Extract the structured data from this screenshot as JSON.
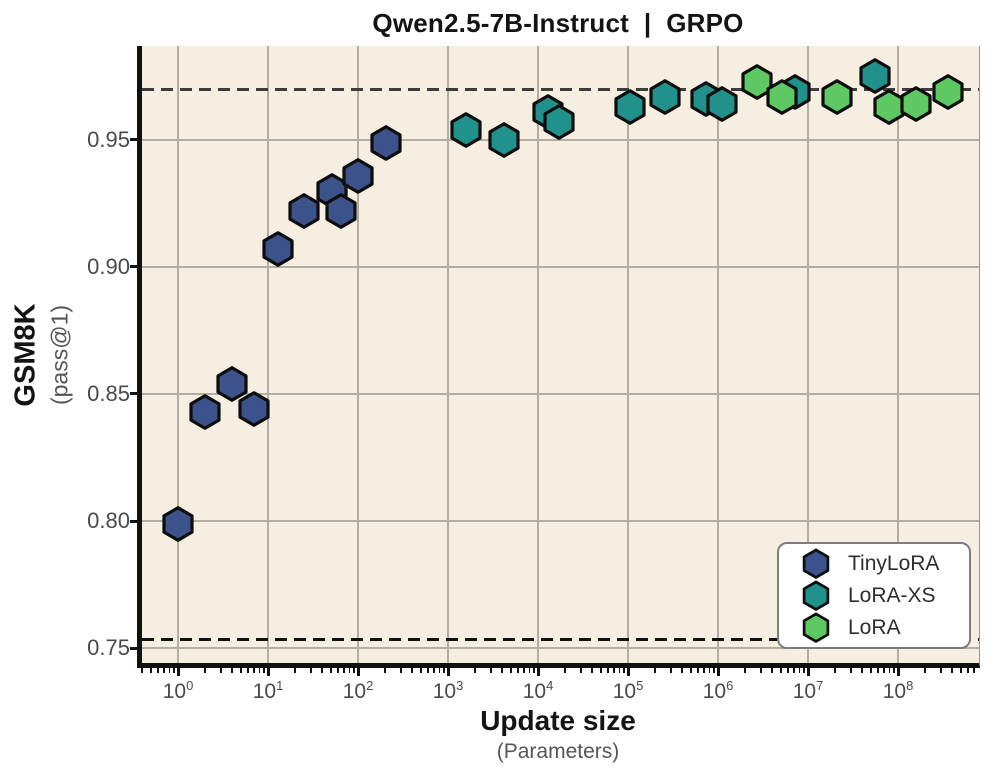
{
  "chart_data": {
    "type": "scatter",
    "title": "Qwen2.5-7B-Instruct  |  GRPO",
    "xlabel": "Update size",
    "xlabel_sub": "(Parameters)",
    "ylabel": "GSM8K",
    "ylabel_sub": "(pass@1)",
    "x_scale": "log",
    "x_log_range": [
      -0.4,
      8.9
    ],
    "y_range": [
      0.7441,
      0.987
    ],
    "x_ticks_exponents": [
      0,
      1,
      2,
      3,
      4,
      5,
      6,
      7,
      8
    ],
    "y_ticks": [
      0.75,
      0.8,
      0.85,
      0.9,
      0.95
    ],
    "y_tick_labels": [
      "0.75",
      "0.80",
      "0.85",
      "0.90",
      "0.95"
    ],
    "grid": true,
    "gridline_color": "#b3ada3",
    "plot_background": "#f6eee1",
    "marker": "hexagon",
    "marker_edge_color": "#0d0d0d",
    "ref_lines": [
      {
        "y": 0.97,
        "style": "dashed",
        "color": "#3d3d3d"
      },
      {
        "y": 0.7535,
        "style": "dashed",
        "color": "#111111"
      }
    ],
    "legend_position": "lower right",
    "series": [
      {
        "name": "TinyLoRA",
        "color": "#3b528b",
        "points": [
          [
            1,
            0.799
          ],
          [
            2,
            0.843
          ],
          [
            4,
            0.854
          ],
          [
            7,
            0.844
          ],
          [
            13,
            0.907
          ],
          [
            25,
            0.922
          ],
          [
            51,
            0.93
          ],
          [
            65,
            0.922
          ],
          [
            100,
            0.936
          ],
          [
            205,
            0.949
          ]
        ]
      },
      {
        "name": "LoRA-XS",
        "color": "#21918c",
        "points": [
          [
            1600,
            0.954
          ],
          [
            4200,
            0.95
          ],
          [
            13000,
            0.961
          ],
          [
            17000,
            0.957
          ],
          [
            105000,
            0.963
          ],
          [
            260000,
            0.967
          ],
          [
            740000,
            0.966
          ],
          [
            1100000,
            0.964
          ],
          [
            7200000,
            0.969
          ],
          [
            55000000,
            0.975
          ]
        ]
      },
      {
        "name": "LoRA",
        "color": "#5ec962",
        "points": [
          [
            2700000,
            0.973
          ],
          [
            5100000,
            0.967
          ],
          [
            21000000,
            0.967
          ],
          [
            80000000,
            0.963
          ],
          [
            160000000,
            0.964
          ],
          [
            360000000,
            0.969
          ]
        ]
      }
    ]
  }
}
